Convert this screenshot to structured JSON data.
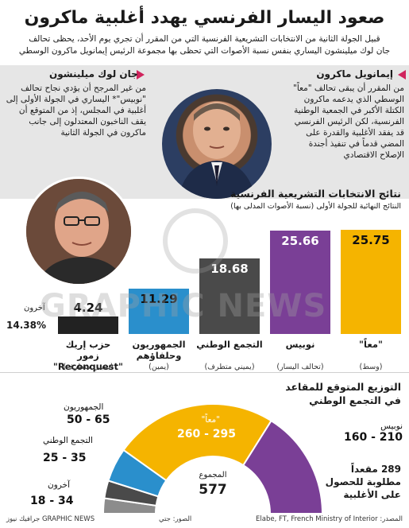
{
  "title": "صعود اليسار الفرنسي يهدد أغلبية ماكرون",
  "subtitle_line1": "قبيل الجولة الثانية من الانتخابات التشريعية الفرنسية التي من المقرر أن تجري يوم الأحد، يحظى تحالف",
  "subtitle_line2": "جان لوك ميلينشون اليساري بنفس نسبة الأصوات التي تحظى بها مجموعة الرئيس إيمانويل ماكرون الوسطي",
  "macron": {
    "name": "إيمانويل ماكرون",
    "desc": "من المقرر أن يبقى تحالف \"معاً\" الوسطي الذي يدعمه ماكرون الكتلة الأكبر في الجمعية الوطنية الفرنسية، لكن الرئيس الفرنسي قد يفقد الأغلبية والقدرة على المضي قدماً في تنفيذ أجندة الإصلاح الاقتصادي"
  },
  "melenchon": {
    "name": "جان لوك ميلينشون",
    "desc": "من غير المرجح أن يؤدي نجاح تحالف \"نوبيس\"* اليساري في الجولة الأولى إلى أغلبية في المجلس، إذ من المتوقع أن يقف الناخبون المعتدلون إلى جانب ماكرون في الجولة الثانية"
  },
  "results": {
    "heading": "نتائج الانتخابات التشريعية الفرنسية",
    "subheading": "النتائج النهائية للجولة الأولى (نسبة الأصوات المدلى بها)",
    "others_label": "آخرون",
    "others_value": "14.38%"
  },
  "chart_data": {
    "type": "bar",
    "title": "نتائج الانتخابات التشريعية الفرنسية",
    "subtitle": "النتائج النهائية للجولة الأولى (نسبة الأصوات المدلى بها)",
    "categories": [
      "\"معاً\"",
      "نوبيس",
      "التجمع الوطني",
      "الجمهوريون وحلفاؤهم",
      "حزب إريك زمور \"Reconquest\""
    ],
    "sublabels": [
      "(وسط)",
      "(تحالف اليسار)",
      "(يميني متطرف)",
      "(يمين)",
      "(يميني متطرف)"
    ],
    "values": [
      25.75,
      25.66,
      18.68,
      11.29,
      4.24
    ],
    "value_labels": [
      "25.75",
      "25.66",
      "18.68",
      "11.29",
      "4.24"
    ],
    "colors": [
      "#f5b400",
      "#7a3f96",
      "#4a4a4a",
      "#2a8fcc",
      "#222222"
    ],
    "ylim": [
      0,
      26
    ]
  },
  "seats": {
    "heading_line1": "التوزيع المتوقع للمقاعد",
    "heading_line2": "في التجمع الوطني",
    "items": [
      {
        "name": "\"معاً\"",
        "range": "260 - 295",
        "color": "#f5b400",
        "low": 260,
        "high": 295
      },
      {
        "name": "نوبيس",
        "range": "160 - 210",
        "color": "#7a3f96",
        "low": 160,
        "high": 210
      },
      {
        "name": "الجمهوريون",
        "range": "50 - 65",
        "color": "#2a8fcc",
        "low": 50,
        "high": 65
      },
      {
        "name": "التجمع الوطني",
        "range": "25 - 35",
        "color": "#4a4a4a",
        "low": 25,
        "high": 35
      },
      {
        "name": "آخرون",
        "range": "18 - 34",
        "color": "#8c8c8c",
        "low": 18,
        "high": 34
      }
    ],
    "total_label": "المجموع",
    "total_value": "577",
    "majority_line1": "289 مقعداً",
    "majority_line2": "مطلوبة للحصول",
    "majority_line3": "على الأغلبية"
  },
  "footer": {
    "source": "المصدر: Elabe, FT, French Ministry of Interior",
    "photos": "الصور: جتي",
    "credit": "GRAPHIC NEWS جرافيك نيوز"
  },
  "watermark": "GRAPHIC NEWS",
  "colors": {
    "accent": "#d0245d",
    "ensemble": "#f5b400",
    "nupes": "#7a3f96",
    "rn": "#4a4a4a",
    "lr": "#2a8fcc",
    "other": "#8c8c8c"
  }
}
